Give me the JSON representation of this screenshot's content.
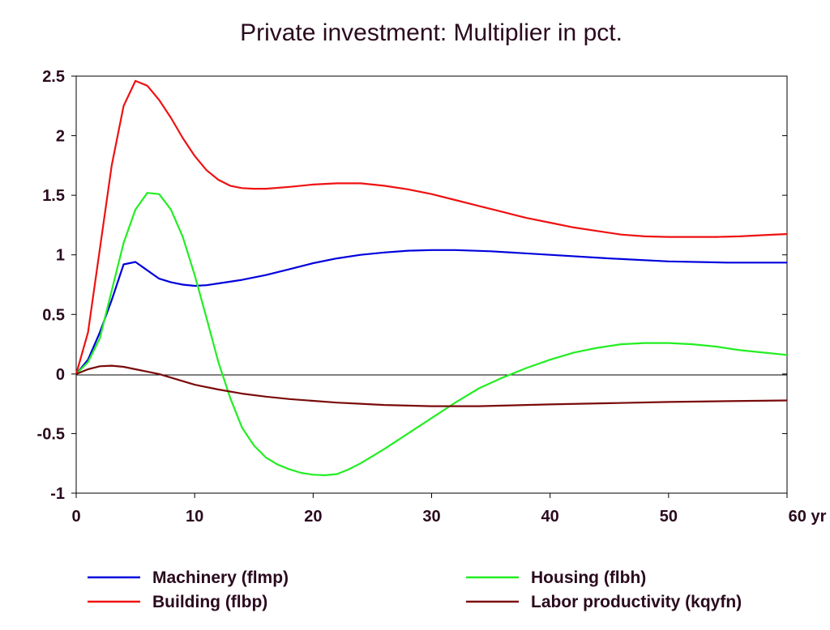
{
  "chart_data": {
    "type": "line",
    "title": "Private investment: Multiplier in pct.",
    "xlabel": "",
    "ylabel": "",
    "x_unit": "yr",
    "xlim": [
      0,
      60
    ],
    "ylim": [
      -1,
      2.5
    ],
    "x_ticks": [
      0,
      10,
      20,
      30,
      40,
      50,
      60
    ],
    "x_tick_labels": [
      "0",
      "10",
      "20",
      "30",
      "40",
      "50",
      "60 yr"
    ],
    "y_ticks": [
      -1,
      -0.5,
      0,
      0.5,
      1,
      1.5,
      2,
      2.5
    ],
    "y_tick_labels": [
      "-1",
      "-0.5",
      "0",
      "0.5",
      "1",
      "1.5",
      "2",
      "2.5"
    ],
    "grid": false,
    "zero_line": true,
    "legend_position": "bottom",
    "series": [
      {
        "name": "Machinery (flmp)",
        "color": "#0000dd",
        "x": [
          0,
          1,
          2,
          3,
          4,
          5,
          6,
          7,
          8,
          9,
          10,
          11,
          12,
          14,
          16,
          18,
          20,
          22,
          24,
          26,
          28,
          30,
          32,
          35,
          40,
          45,
          50,
          55,
          60
        ],
        "values": [
          0,
          0.12,
          0.35,
          0.62,
          0.92,
          0.94,
          0.87,
          0.8,
          0.77,
          0.75,
          0.74,
          0.745,
          0.76,
          0.79,
          0.83,
          0.88,
          0.93,
          0.97,
          1.0,
          1.02,
          1.035,
          1.04,
          1.04,
          1.03,
          1.0,
          0.97,
          0.945,
          0.935,
          0.935
        ]
      },
      {
        "name": "Housing (flbh)",
        "color": "#22ee22",
        "x": [
          0,
          1,
          2,
          3,
          4,
          5,
          6,
          7,
          8,
          9,
          10,
          11,
          12,
          13,
          14,
          15,
          16,
          17,
          18,
          19,
          20,
          21,
          22,
          23,
          24,
          25,
          26,
          28,
          30,
          32,
          34,
          36,
          38,
          40,
          42,
          44,
          46,
          48,
          50,
          52,
          54,
          56,
          58,
          60
        ],
        "values": [
          0,
          0.1,
          0.3,
          0.7,
          1.1,
          1.38,
          1.52,
          1.51,
          1.38,
          1.15,
          0.83,
          0.47,
          0.1,
          -0.2,
          -0.45,
          -0.6,
          -0.7,
          -0.76,
          -0.8,
          -0.83,
          -0.845,
          -0.85,
          -0.84,
          -0.8,
          -0.75,
          -0.69,
          -0.63,
          -0.5,
          -0.37,
          -0.24,
          -0.12,
          -0.03,
          0.05,
          0.12,
          0.18,
          0.22,
          0.25,
          0.26,
          0.26,
          0.25,
          0.23,
          0.2,
          0.18,
          0.16
        ]
      },
      {
        "name": "Building (flbp)",
        "color": "#ee1111",
        "x": [
          0,
          1,
          2,
          3,
          4,
          5,
          6,
          7,
          8,
          9,
          10,
          11,
          12,
          13,
          14,
          15,
          16,
          18,
          20,
          22,
          24,
          26,
          28,
          30,
          32,
          34,
          36,
          38,
          40,
          42,
          44,
          46,
          48,
          50,
          52,
          54,
          56,
          58,
          60
        ],
        "values": [
          0,
          0.35,
          1.05,
          1.75,
          2.25,
          2.46,
          2.42,
          2.3,
          2.15,
          1.98,
          1.83,
          1.71,
          1.63,
          1.58,
          1.56,
          1.555,
          1.555,
          1.57,
          1.59,
          1.6,
          1.6,
          1.58,
          1.55,
          1.51,
          1.46,
          1.41,
          1.36,
          1.31,
          1.27,
          1.23,
          1.2,
          1.17,
          1.155,
          1.15,
          1.15,
          1.15,
          1.155,
          1.165,
          1.175
        ]
      },
      {
        "name": "Labor productivity (kqyfn)",
        "color": "#7a0a0a",
        "x": [
          0,
          1,
          2,
          3,
          4,
          5,
          6,
          7,
          8,
          10,
          12,
          14,
          16,
          18,
          20,
          22,
          24,
          26,
          28,
          30,
          32,
          34,
          36,
          38,
          40,
          45,
          50,
          55,
          60
        ],
        "values": [
          0,
          0.04,
          0.065,
          0.07,
          0.06,
          0.04,
          0.02,
          0.0,
          -0.03,
          -0.09,
          -0.13,
          -0.165,
          -0.19,
          -0.21,
          -0.225,
          -0.24,
          -0.25,
          -0.26,
          -0.265,
          -0.27,
          -0.27,
          -0.27,
          -0.265,
          -0.26,
          -0.255,
          -0.245,
          -0.235,
          -0.228,
          -0.222
        ]
      }
    ]
  }
}
